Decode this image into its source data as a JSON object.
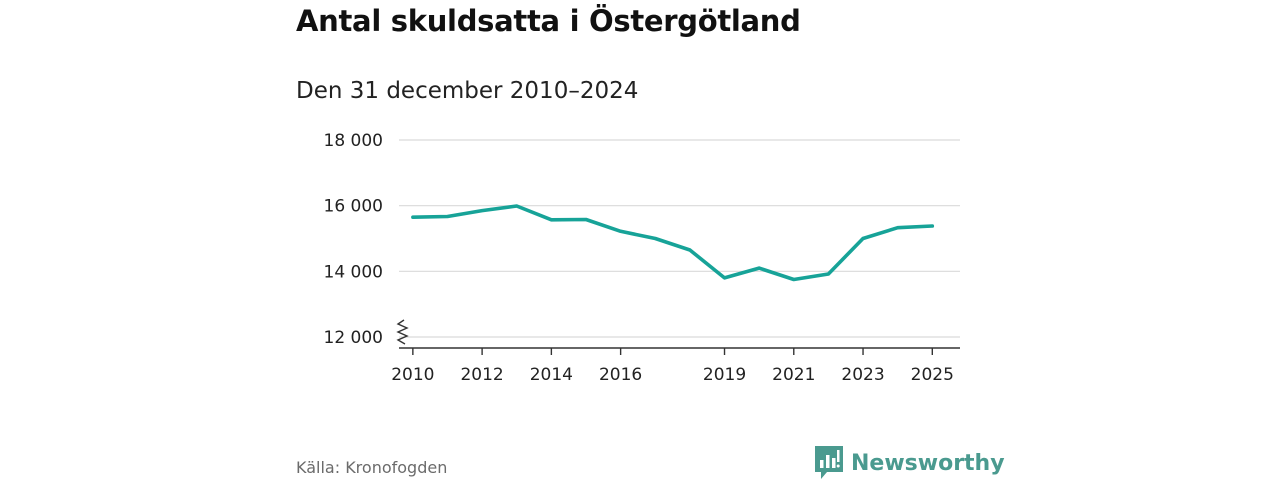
{
  "header": {
    "title": "Antal skuldsatta i Östergötland",
    "subtitle": "Den 31 december 2010–2024"
  },
  "footer": {
    "source": "Källa: Kronofogden",
    "brand": "Newsworthy",
    "brand_icon": "newsworthy-logo-icon"
  },
  "colors": {
    "line": "#17a398",
    "grid": "#d9d9d9",
    "axis": "#333333",
    "brand": "#4a9a8f"
  },
  "chart_data": {
    "type": "line",
    "title": "Antal skuldsatta i Östergötland",
    "subtitle": "Den 31 december 2010–2024",
    "xlabel": "",
    "ylabel": "",
    "x_ticks": [
      2010,
      2012,
      2014,
      2016,
      2019,
      2021,
      2023,
      2025
    ],
    "x_tick_labels": [
      "2010",
      "2012",
      "2014",
      "2016",
      "2019",
      "2021",
      "2023",
      "2025"
    ],
    "y_ticks": [
      12000,
      14000,
      16000,
      18000
    ],
    "y_tick_labels": [
      "12 000",
      "14 000",
      "16 000",
      "18 000"
    ],
    "xlim": [
      2009.6,
      2025.8
    ],
    "ylim": [
      12000,
      18000
    ],
    "y_axis_break": true,
    "grid": true,
    "series": [
      {
        "name": "Antal skuldsatta",
        "x": [
          2010,
          2011,
          2012,
          2013,
          2014,
          2015,
          2016,
          2017,
          2018,
          2019,
          2020,
          2021,
          2022,
          2023,
          2024,
          2025
        ],
        "values": [
          15650,
          15670,
          15850,
          15990,
          15570,
          15580,
          15220,
          15000,
          14650,
          13800,
          14100,
          13750,
          13920,
          15000,
          15330,
          15380
        ]
      }
    ]
  }
}
